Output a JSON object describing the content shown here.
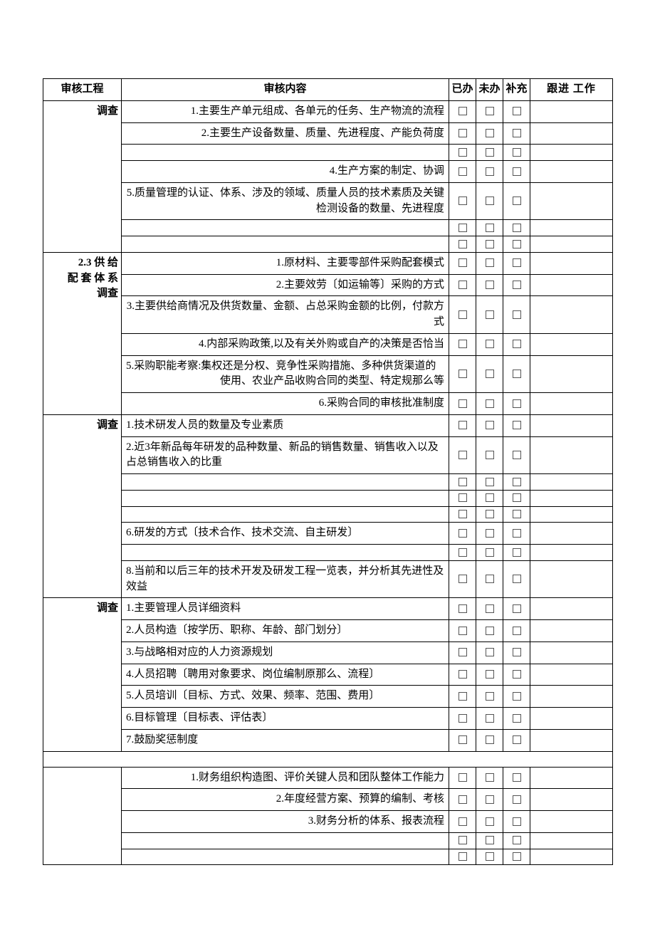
{
  "header": {
    "col1": "审核工程",
    "col2": "审核内容",
    "col3": "已办",
    "col4": "未办",
    "col5": "补充",
    "col6": "跟进 工作"
  },
  "rows": [
    {
      "proj": "调查",
      "content": "1.主要生产单元组成、各单元的任务、生产物流的流程",
      "align": "r",
      "boxes": true,
      "projRowspan": 7
    },
    {
      "content": "2.主要生产设备数量、质量、先进程度、产能负荷度",
      "align": "r",
      "boxes": true
    },
    {
      "content": "",
      "align": "r",
      "boxes": true
    },
    {
      "content": "4.生产方案的制定、协调",
      "align": "r",
      "boxes": true
    },
    {
      "content": "5.质量管理的认证、体系、涉及的领域、质量人员的技术素质及关键检测设备的数量、先进程度",
      "align": "r",
      "boxes": true
    },
    {
      "content": "",
      "align": "r",
      "boxes": true
    },
    {
      "content": "",
      "align": "r",
      "boxes": true
    },
    {
      "proj": "2.3 供 给配 套 体 系调查",
      "content": "1.原材料、主要零部件采购配套模式",
      "align": "r",
      "boxes": true,
      "projRowspan": 6,
      "projLines": [
        "2.3 供 给",
        "配 套 体 系",
        "调查"
      ]
    },
    {
      "content": "2.主要效劳〔如运输等〕采购的方式",
      "align": "r",
      "boxes": true
    },
    {
      "content": "3.主要供给商情况及供货数量、金额、占总采购金额的比例，付款方式",
      "align": "r",
      "boxes": true
    },
    {
      "content": "4.内部采购政策,以及有关外购或自产的决策是否恰当",
      "align": "r",
      "boxes": true
    },
    {
      "content": "5.采购职能考察:集权还是分权、竞争性采购措施、多种供货渠道的使用、农业产品收购合同的类型、特定规那么等",
      "align": "l",
      "boxes": true,
      "specialAlignEnd": true
    },
    {
      "content": "6.采购合同的审核批准制度",
      "align": "r",
      "boxes": true
    },
    {
      "proj": "调查",
      "content": "1.技术研发人员的数量及专业素质",
      "align": "l",
      "boxes": true,
      "projRowspan": 8
    },
    {
      "content": "2.近3年新品每年研发的品种数量、新品的销售数量、销售收入以及占总销售收入的比重",
      "align": "l",
      "boxes": true
    },
    {
      "content": "",
      "align": "l",
      "boxes": true
    },
    {
      "content": "",
      "align": "l",
      "boxes": true
    },
    {
      "content": "",
      "align": "l",
      "boxes": true
    },
    {
      "content": "6.研发的方式〔技术合作、技术交流、自主研发〕",
      "align": "l",
      "boxes": true
    },
    {
      "content": "",
      "align": "l",
      "boxes": true
    },
    {
      "content": "8.当前和以后三年的技术开发及研发工程一览表，并分析其先进性及效益",
      "align": "l",
      "boxes": true
    },
    {
      "proj": "调查",
      "content": "1.主要管理人员详细资料",
      "align": "l",
      "boxes": true,
      "projRowspan": 7
    },
    {
      "content": "2.人员构造〔按学历、职称、年龄、部门划分〕",
      "align": "l",
      "boxes": true
    },
    {
      "content": "3.与战略相对应的人力资源规划",
      "align": "l",
      "boxes": true
    },
    {
      "content": "4.人员招聘〔聘用对象要求、岗位编制原那么、流程〕",
      "align": "l",
      "boxes": true
    },
    {
      "content": "5.人员培训〔目标、方式、效果、频率、范围、费用〕",
      "align": "l",
      "boxes": true
    },
    {
      "content": "6.目标管理〔目标表、评估表〕",
      "align": "l",
      "boxes": true
    },
    {
      "content": "7.鼓励奖惩制度",
      "align": "l",
      "boxes": true
    },
    {
      "spacer": true
    },
    {
      "proj": "",
      "content": "1.财务组织构造图、评价关键人员和团队整体工作能力",
      "align": "r",
      "boxes": true,
      "projRowspan": 5
    },
    {
      "content": "2.年度经营方案、预算的编制、考核",
      "align": "r",
      "boxes": true
    },
    {
      "content": "3.财务分析的体系、报表流程",
      "align": "r",
      "boxes": true
    },
    {
      "content": "",
      "align": "r",
      "boxes": true
    },
    {
      "content": "",
      "align": "r",
      "boxes": true
    }
  ],
  "chkbox_color": "#555555",
  "border_color": "#000000",
  "font_size_pt": 11
}
